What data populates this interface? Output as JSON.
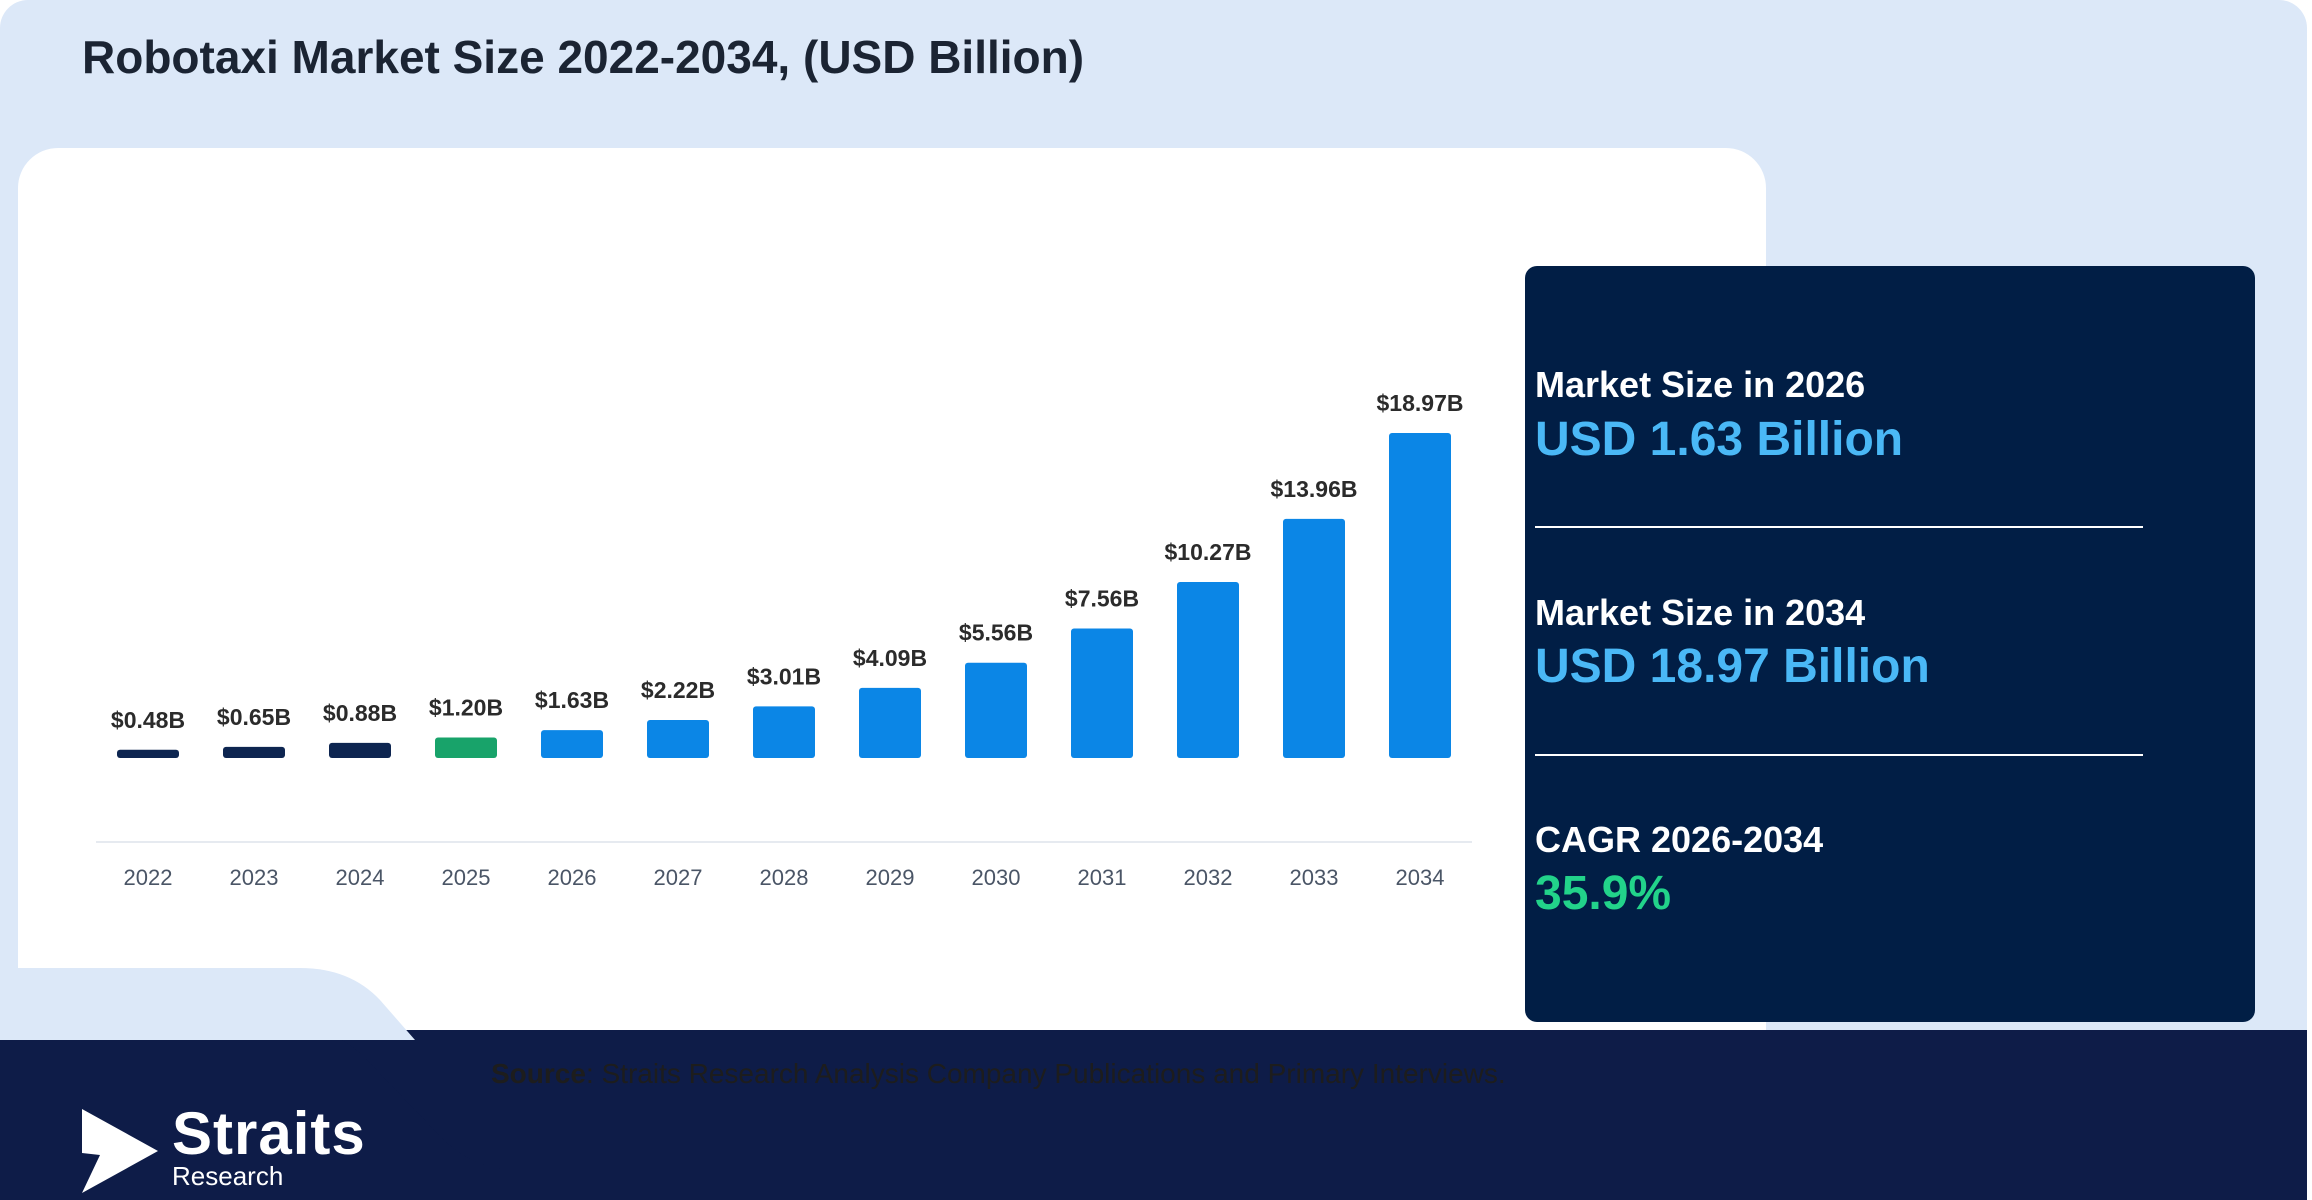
{
  "title": "Robotaxi Market Size 2022-2034, (USD Billion)",
  "chart_data": {
    "type": "bar",
    "categories": [
      "2022",
      "2023",
      "2024",
      "2025",
      "2026",
      "2027",
      "2028",
      "2029",
      "2030",
      "2031",
      "2032",
      "2033",
      "2034"
    ],
    "values": [
      0.48,
      0.65,
      0.88,
      1.2,
      1.63,
      2.22,
      3.01,
      4.09,
      5.56,
      7.56,
      10.27,
      13.96,
      18.97
    ],
    "data_labels": [
      "$0.48B",
      "$0.65B",
      "$0.88B",
      "$1.20B",
      "$1.63B",
      "$2.22B",
      "$3.01B",
      "$4.09B",
      "$5.56B",
      "$7.56B",
      "$10.27B",
      "$13.96B",
      "$18.97B"
    ],
    "bar_colors": [
      "#0d2550",
      "#0d2550",
      "#0d2550",
      "#18a36a",
      "#0b86e6",
      "#0b86e6",
      "#0b86e6",
      "#0b86e6",
      "#0b86e6",
      "#0b86e6",
      "#0b86e6",
      "#0b86e6",
      "#0b86e6"
    ],
    "ylim": [
      0,
      18.97
    ],
    "grid": false,
    "legend": "none"
  },
  "stats": [
    {
      "label": "Market Size in 2026",
      "value": "USD 1.63 Billion",
      "color": "#4ab8f6"
    },
    {
      "label": "Market Size in 2034",
      "value": "USD 18.97 Billion",
      "color": "#4ab8f6"
    },
    {
      "label": "CAGR 2026-2034",
      "value": "35.9%",
      "color": "#22d38a"
    }
  ],
  "source": {
    "label": "Source",
    "text": ": Straits Research Analysis Company Publications and Primary Interviews."
  },
  "logo": {
    "name": "Straits",
    "sub": "Research"
  }
}
